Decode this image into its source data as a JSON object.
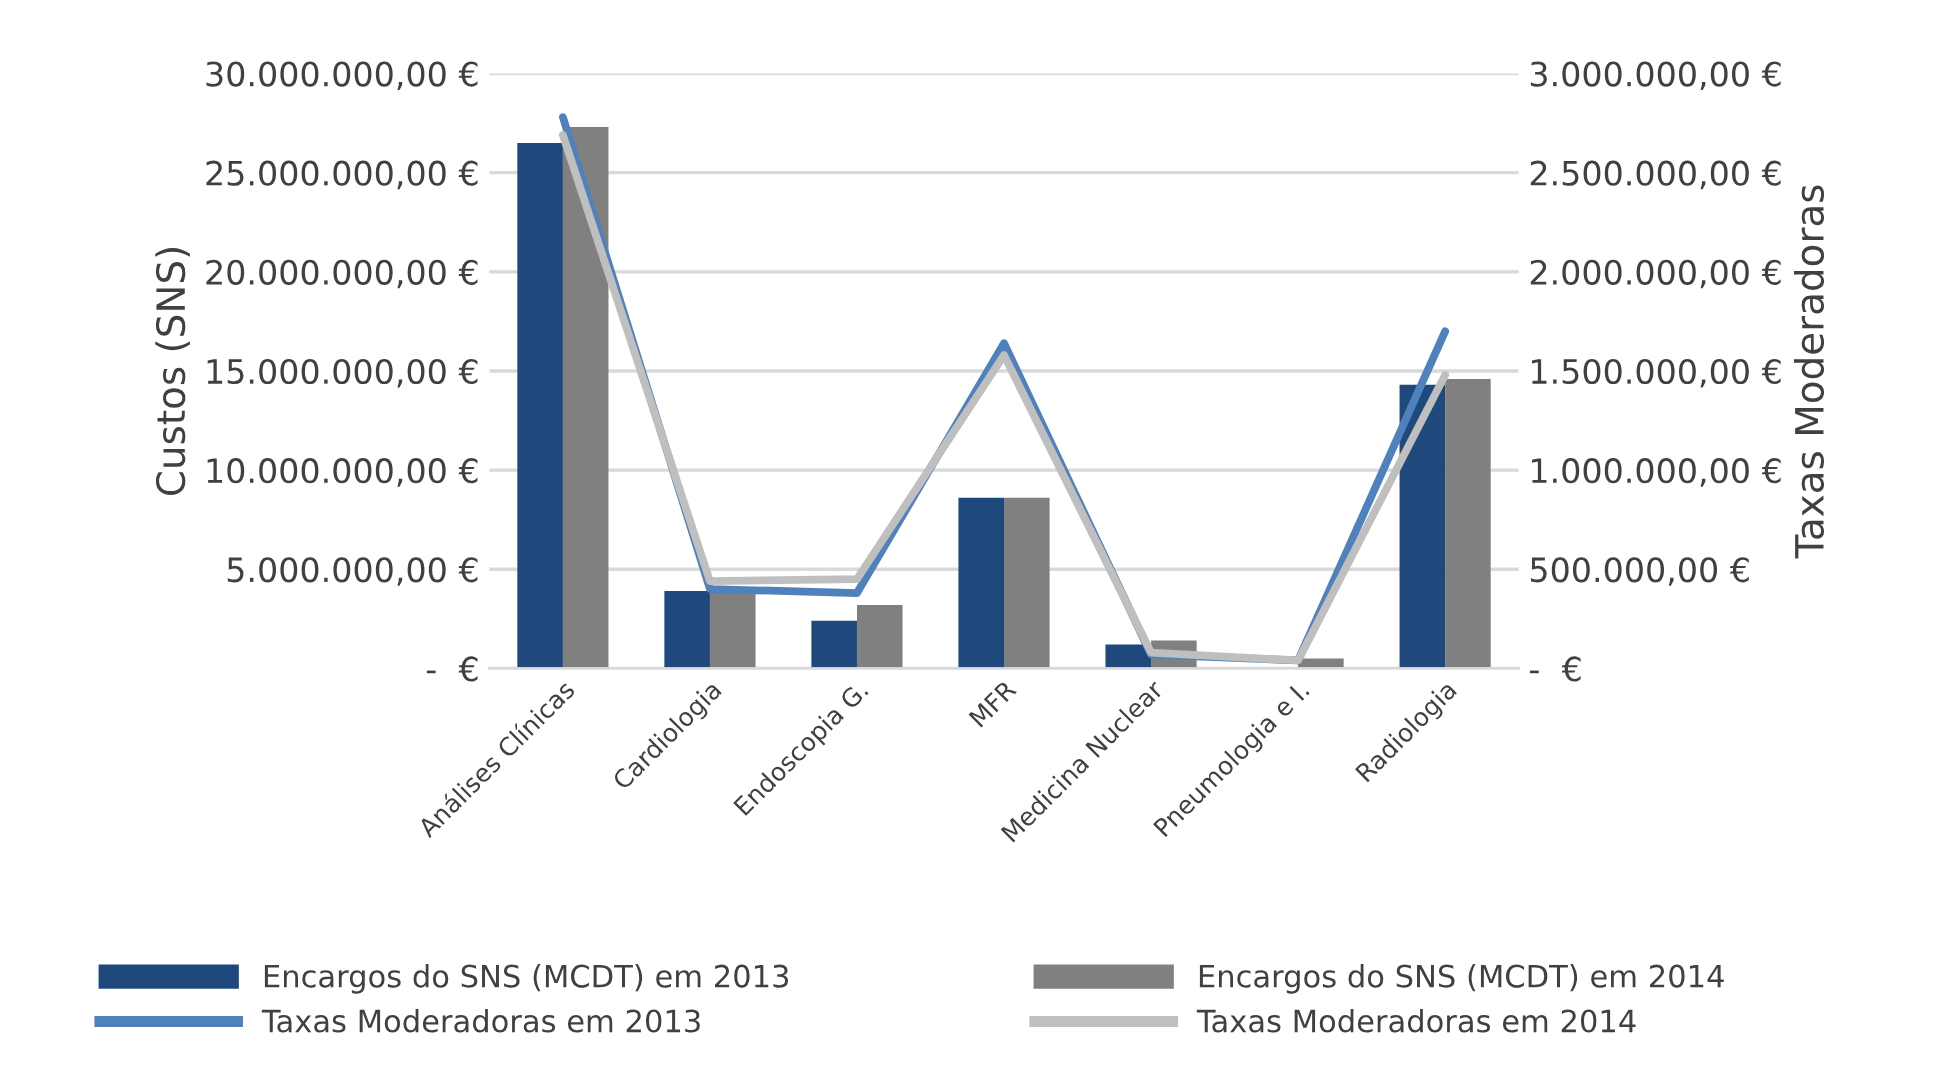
{
  "chart_data": {
    "type": "bar",
    "ylabel": "Custos (SNS)",
    "y2label": "Taxas Moderadoras",
    "categories": [
      "Análises Clínicas",
      "Cardiologia",
      "Endoscopia G.",
      "MFR",
      "Medicina Nuclear",
      "Pneumologia e I.",
      "Radiologia"
    ],
    "series": [
      {
        "name": "Encargos do SNS (MCDT) em 2013",
        "color": "#1f497d",
        "values": [
          26500000,
          3900000,
          2400000,
          8600000,
          1200000,
          null,
          14300000
        ]
      },
      {
        "name": "Encargos do SNS (MCDT) em 2014",
        "color": "#808080",
        "values": [
          27300000,
          4000000,
          3200000,
          8600000,
          1400000,
          500000,
          14600000
        ]
      },
      {
        "name": "Taxas Moderadoras em 2013",
        "type": "line",
        "axis": "y2",
        "color": "#4f81bd",
        "values": [
          2780000,
          400000,
          380000,
          1640000,
          70000,
          40000,
          1700000
        ]
      },
      {
        "name": "Taxas Moderadoras em 2014",
        "type": "line",
        "axis": "y2",
        "color": "#bfbfbf",
        "values": [
          2690000,
          440000,
          450000,
          1580000,
          80000,
          40000,
          1480000
        ]
      }
    ],
    "ylim": [
      0,
      30000000
    ],
    "yticks": [
      {
        "value": 0,
        "label": "-  €"
      },
      {
        "value": 5000000,
        "label": "5.000.000,00 €"
      },
      {
        "value": 10000000,
        "label": "10.000.000,00 €"
      },
      {
        "value": 15000000,
        "label": "15.000.000,00 €"
      },
      {
        "value": 20000000,
        "label": "20.000.000,00 €"
      },
      {
        "value": 25000000,
        "label": "25.000.000,00 €"
      },
      {
        "value": 30000000,
        "label": "30.000.000,00 €"
      }
    ],
    "y2lim": [
      0,
      3000000
    ],
    "y2ticks": [
      {
        "value": 0,
        "label": "-  €"
      },
      {
        "value": 500000,
        "label": "500.000,00 €"
      },
      {
        "value": 1000000,
        "label": "1.000.000,00 €"
      },
      {
        "value": 1500000,
        "label": "1.500.000,00 €"
      },
      {
        "value": 2000000,
        "label": "2.000.000,00 €"
      },
      {
        "value": 2500000,
        "label": "2.500.000,00 €"
      },
      {
        "value": 3000000,
        "label": "3.000.000,00 €"
      }
    ],
    "grid": "y",
    "legend": "bottom",
    "marker": "none",
    "line_style": "solid"
  }
}
